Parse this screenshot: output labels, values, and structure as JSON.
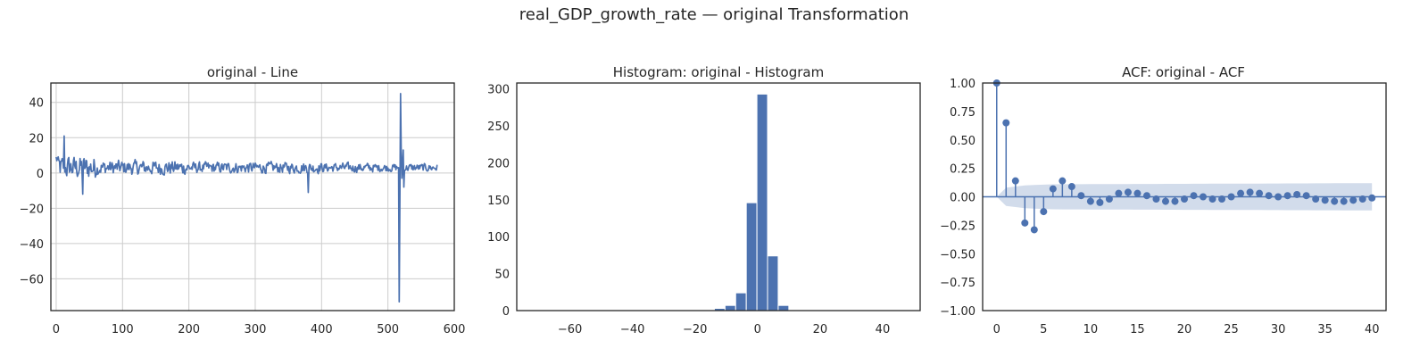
{
  "figure": {
    "suptitle": "real_GDP_growth_rate — original Transformation"
  },
  "colors": {
    "series": "#4c72b0",
    "conf_band": "#4c72b0",
    "grid": "#cccccc",
    "axes": "#262626"
  },
  "chart_data": [
    {
      "type": "line",
      "title": "original - Line",
      "xlabel": "",
      "ylabel": "",
      "xlim": [
        -8,
        600
      ],
      "ylim": [
        -78,
        51
      ],
      "xticks": [
        0,
        100,
        200,
        300,
        400,
        500,
        600
      ],
      "yticks": [
        -60,
        -40,
        -20,
        0,
        20,
        40
      ],
      "grid": true,
      "n_points": 576,
      "key_points": [
        {
          "x": 12,
          "y": 21
        },
        {
          "x": 40,
          "y": -12
        },
        {
          "x": 380,
          "y": -11
        },
        {
          "x": 517,
          "y": -73
        },
        {
          "x": 519,
          "y": 45
        }
      ]
    },
    {
      "type": "bar",
      "subtype": "histogram",
      "title": "Histogram: original - Histogram",
      "xlabel": "",
      "ylabel": "",
      "xlim": [
        -77,
        52
      ],
      "ylim": [
        0,
        308
      ],
      "xticks": [
        -60,
        -40,
        -20,
        0,
        20,
        40
      ],
      "yticks": [
        0,
        50,
        100,
        150,
        200,
        250,
        300
      ],
      "grid": false,
      "bin_width": 3.4,
      "bins": [
        {
          "x0": -13.8,
          "x1": -10.4,
          "count": 3
        },
        {
          "x0": -10.4,
          "x1": -7.0,
          "count": 7
        },
        {
          "x0": -7.0,
          "x1": -3.6,
          "count": 24
        },
        {
          "x0": -3.6,
          "x1": -0.2,
          "count": 146
        },
        {
          "x0": -0.2,
          "x1": 3.2,
          "count": 293
        },
        {
          "x0": 3.2,
          "x1": 6.6,
          "count": 74
        },
        {
          "x0": 6.6,
          "x1": 10.0,
          "count": 7
        }
      ]
    },
    {
      "type": "scatter",
      "subtype": "acf-stem",
      "title": "ACF: original - ACF",
      "xlabel": "",
      "ylabel": "",
      "xlim": [
        -1.5,
        41.5
      ],
      "ylim": [
        -1.0,
        1.0
      ],
      "xticks": [
        0,
        5,
        10,
        15,
        20,
        25,
        30,
        35,
        40
      ],
      "yticks": [
        -1.0,
        -0.75,
        -0.5,
        -0.25,
        0.0,
        0.25,
        0.5,
        0.75,
        1.0
      ],
      "ytick_labels": [
        "−1.00",
        "−0.75",
        "−0.50",
        "−0.25",
        "0.00",
        "0.25",
        "0.50",
        "0.75",
        "1.00"
      ],
      "grid": false,
      "lags": [
        0,
        1,
        2,
        3,
        4,
        5,
        6,
        7,
        8,
        9,
        10,
        11,
        12,
        13,
        14,
        15,
        16,
        17,
        18,
        19,
        20,
        21,
        22,
        23,
        24,
        25,
        26,
        27,
        28,
        29,
        30,
        31,
        32,
        33,
        34,
        35,
        36,
        37,
        38,
        39,
        40
      ],
      "values": [
        1.0,
        0.65,
        0.14,
        -0.23,
        -0.29,
        -0.13,
        0.07,
        0.14,
        0.09,
        0.01,
        -0.04,
        -0.05,
        -0.02,
        0.03,
        0.04,
        0.03,
        0.01,
        -0.02,
        -0.04,
        -0.04,
        -0.02,
        0.01,
        0.0,
        -0.02,
        -0.02,
        0.0,
        0.03,
        0.04,
        0.03,
        0.01,
        0.0,
        0.01,
        0.02,
        0.01,
        -0.02,
        -0.03,
        -0.04,
        -0.04,
        -0.03,
        -0.02,
        -0.01
      ],
      "confidence_band": [
        {
          "lag": 0,
          "half_width": 0.0
        },
        {
          "lag": 1,
          "half_width": 0.08
        },
        {
          "lag": 3,
          "half_width": 0.1
        },
        {
          "lag": 6,
          "half_width": 0.11
        },
        {
          "lag": 40,
          "half_width": 0.12
        }
      ]
    }
  ]
}
